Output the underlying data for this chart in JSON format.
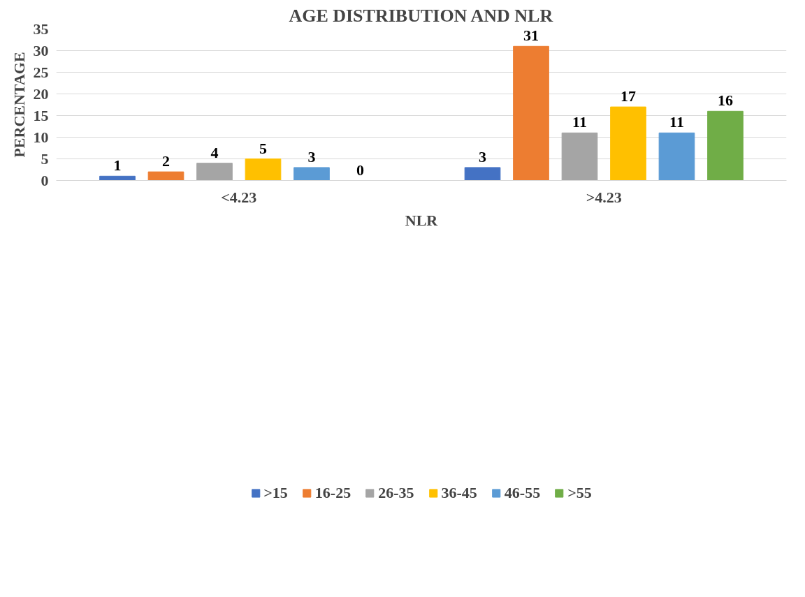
{
  "chart_data": {
    "type": "bar",
    "title": "AGE DISTRIBUTION AND NLR",
    "xlabel": "NLR",
    "ylabel": "PERCENTAGE",
    "categories": [
      "<4.23",
      ">4.23"
    ],
    "series": [
      {
        "name": ">15",
        "color": "#4472c4",
        "values": [
          1,
          3
        ]
      },
      {
        "name": "16-25",
        "color": "#ed7d31",
        "values": [
          2,
          31
        ]
      },
      {
        "name": "26-35",
        "color": "#a5a5a5",
        "values": [
          4,
          11
        ]
      },
      {
        "name": "36-45",
        "color": "#ffc000",
        "values": [
          5,
          17
        ]
      },
      {
        "name": "46-55",
        "color": "#5b9bd5",
        "values": [
          3,
          11
        ]
      },
      {
        "name": ">55",
        "color": "#70ad47",
        "values": [
          0,
          16
        ]
      }
    ],
    "ylim": [
      0,
      35
    ],
    "yticks": [
      0,
      5,
      10,
      15,
      20,
      25,
      30,
      35
    ],
    "grid": "y",
    "legend": "bottom",
    "data_labels": true
  }
}
